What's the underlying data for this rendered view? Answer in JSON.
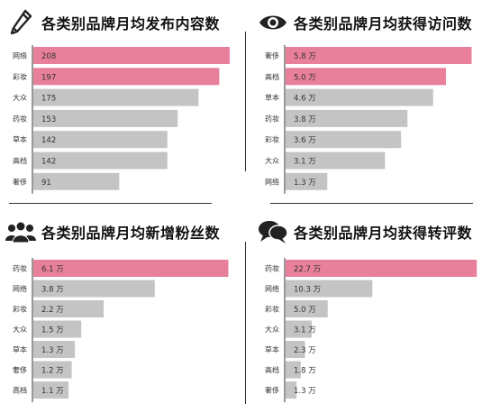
{
  "colors": {
    "highlight": "#e87f9b",
    "normal": "#c4c4c4",
    "text": "#333333",
    "axis": "#333333"
  },
  "icons": [
    "pencil-icon",
    "eye-icon",
    "people-icon",
    "speech-bubbles-icon"
  ],
  "chart_data": [
    {
      "type": "bar",
      "orientation": "horizontal",
      "title": "各类别品牌月均发布内容数",
      "categories": [
        "网络",
        "彩妆",
        "大众",
        "药妆",
        "草本",
        "高档",
        "奢侈"
      ],
      "values": [
        208,
        197,
        175,
        153,
        142,
        142,
        91
      ],
      "value_labels": [
        "208",
        "197",
        "175",
        "153",
        "142",
        "142",
        "91"
      ],
      "highlighted": [
        true,
        true,
        false,
        false,
        false,
        false,
        false
      ],
      "xlim": [
        0,
        210
      ]
    },
    {
      "type": "bar",
      "orientation": "horizontal",
      "title": "各类别品牌月均获得访问数",
      "categories": [
        "奢侈",
        "高档",
        "草本",
        "药妆",
        "彩妆",
        "大众",
        "网络"
      ],
      "values": [
        5.8,
        5.0,
        4.6,
        3.8,
        3.6,
        3.1,
        1.3
      ],
      "value_labels": [
        "5.8 万",
        "5.0 万",
        "4.6 万",
        "3.8 万",
        "3.6 万",
        "3.1 万",
        "1.3 万"
      ],
      "highlighted": [
        true,
        true,
        false,
        false,
        false,
        false,
        false
      ],
      "xlim": [
        0,
        5.9
      ]
    },
    {
      "type": "bar",
      "orientation": "horizontal",
      "title": "各类别品牌月均新增粉丝数",
      "categories": [
        "药妆",
        "网络",
        "彩妆",
        "大众",
        "草本",
        "奢侈",
        "高档"
      ],
      "values": [
        6.1,
        3.8,
        2.2,
        1.5,
        1.3,
        1.2,
        1.1
      ],
      "value_labels": [
        "6.1 万",
        "3.8 万",
        "2.2 万",
        "1.5 万",
        "1.3 万",
        "1.2 万",
        "1.1 万"
      ],
      "highlighted": [
        true,
        false,
        false,
        false,
        false,
        false,
        false
      ],
      "xlim": [
        0,
        6.2
      ]
    },
    {
      "type": "bar",
      "orientation": "horizontal",
      "title": "各类别品牌月均获得转评数",
      "categories": [
        "药妆",
        "网络",
        "彩妆",
        "大众",
        "草本",
        "高档",
        "奢侈"
      ],
      "values": [
        22.7,
        10.3,
        5.0,
        3.1,
        2.3,
        1.8,
        1.3
      ],
      "value_labels": [
        "22.7 万",
        "10.3 万",
        "5.0 万",
        "3.1 万",
        "2.3 万",
        "1.8 万",
        "1.3 万"
      ],
      "highlighted": [
        true,
        false,
        false,
        false,
        false,
        false,
        false
      ],
      "xlim": [
        0,
        23
      ]
    }
  ]
}
